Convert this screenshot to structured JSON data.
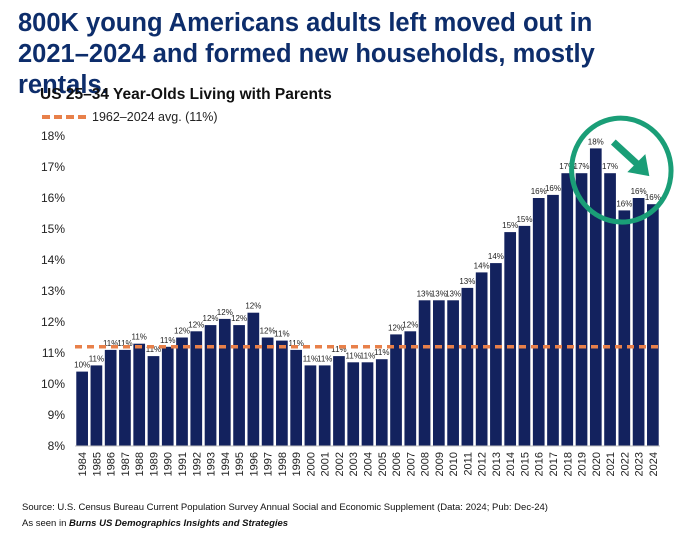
{
  "headline": "800K young Americans adults left moved out in 2021–2024 and formed new households, mostly rentals.",
  "footer": {
    "source": "Source: U.S. Census Bureau Current Population Survey Annual Social and Economic Supplement (Data: 2024; Pub: Dec-24)",
    "attribution_prefix": "As seen in ",
    "attribution_brand": "Burns US Demographics Insights and Strategies"
  },
  "chart_data": {
    "type": "bar",
    "title": "US 25–34 Year-Olds Living with Parents",
    "categories": [
      "1984",
      "1985",
      "1986",
      "1987",
      "1988",
      "1989",
      "1990",
      "1991",
      "1992",
      "1993",
      "1994",
      "1995",
      "1996",
      "1997",
      "1998",
      "1999",
      "2000",
      "2001",
      "2002",
      "2003",
      "2004",
      "2005",
      "2006",
      "2007",
      "2008",
      "2009",
      "2010",
      "2011",
      "2012",
      "2013",
      "2014",
      "2015",
      "2016",
      "2017",
      "2018",
      "2019",
      "2020",
      "2021",
      "2022",
      "2023",
      "2024"
    ],
    "values": [
      10.4,
      10.6,
      11.1,
      11.1,
      11.3,
      10.9,
      11.2,
      11.5,
      11.7,
      11.9,
      12.1,
      11.9,
      12.3,
      11.5,
      11.4,
      11.1,
      10.6,
      10.6,
      10.9,
      10.7,
      10.7,
      10.8,
      11.6,
      11.7,
      12.7,
      12.7,
      12.7,
      13.1,
      13.6,
      13.9,
      14.9,
      15.1,
      16.0,
      16.1,
      16.8,
      16.8,
      17.6,
      16.8,
      15.6,
      16.0,
      15.8
    ],
    "data_labels": [
      "10%",
      "11%",
      "11%",
      "11%",
      "11%",
      "11%",
      "11%",
      "12%",
      "12%",
      "12%",
      "12%",
      "12%",
      "12%",
      "12%",
      "11%",
      "11%",
      "11%",
      "11%",
      "11%",
      "11%",
      "11%",
      "11%",
      "12%",
      "12%",
      "13%",
      "13%",
      "13%",
      "13%",
      "14%",
      "14%",
      "15%",
      "15%",
      "16%",
      "16%",
      "17%",
      "17%",
      "18%",
      "17%",
      "16%",
      "16%",
      "16%"
    ],
    "ylim": [
      8,
      18
    ],
    "yticks": [
      8,
      9,
      10,
      11,
      12,
      13,
      14,
      15,
      16,
      17,
      18
    ],
    "ytick_labels": [
      "8%",
      "9%",
      "10%",
      "11%",
      "12%",
      "13%",
      "14%",
      "15%",
      "16%",
      "17%",
      "18%"
    ],
    "reference_line": {
      "label": "1962–2024 avg. (11%)",
      "value": 11.2,
      "color": "#e8804a"
    },
    "bar_color": "#13225e",
    "annotation": {
      "shape": "ellipse",
      "highlight": [
        "2020",
        "2024"
      ],
      "color": "#1a9e77",
      "arrow": "down-right"
    },
    "grid": false,
    "legend": "top-left"
  }
}
